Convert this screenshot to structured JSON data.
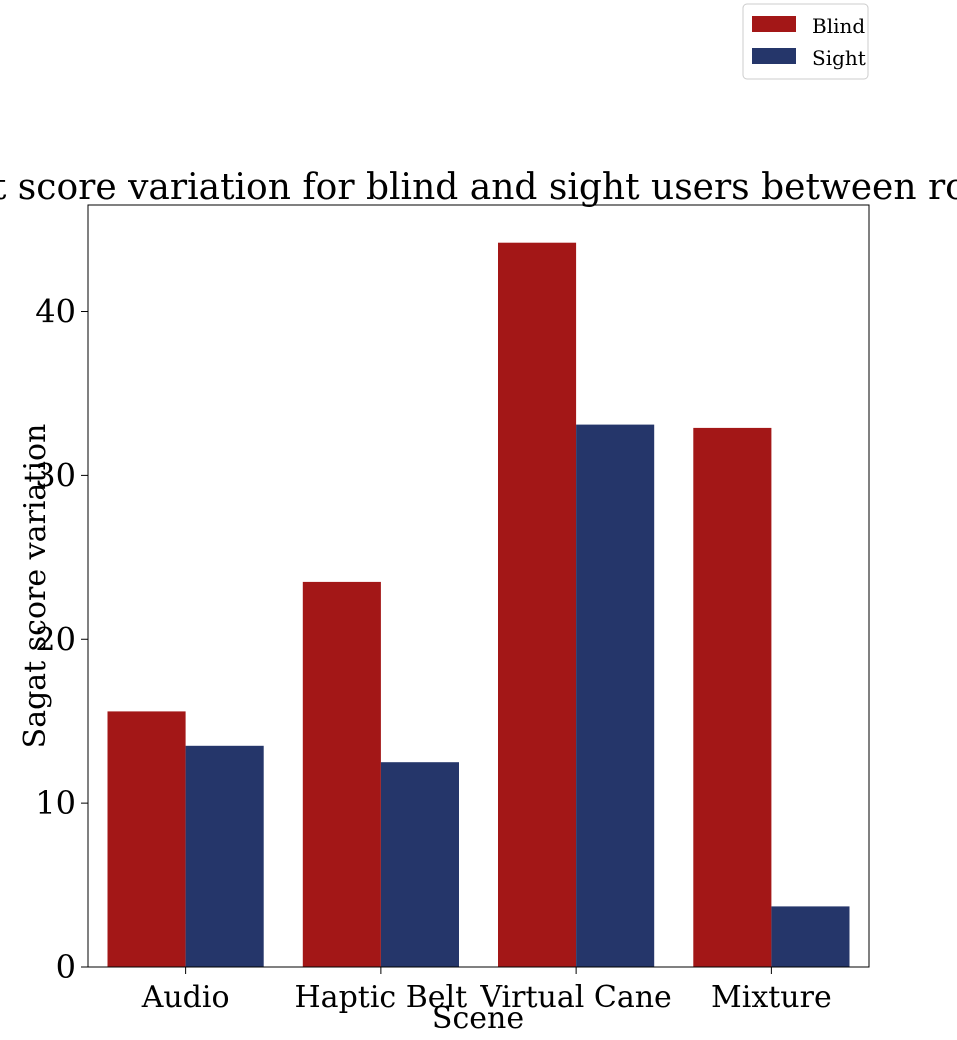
{
  "chart_data": {
    "type": "bar",
    "title": "Sagat score variation for blind and sight users between rounds",
    "xlabel": "Scene",
    "ylabel": "Sagat score variation",
    "categories": [
      "Audio",
      "Haptic Belt",
      "Virtual Cane",
      "Mixture"
    ],
    "series": [
      {
        "name": "Blind",
        "color": "#a31717",
        "values": [
          15.6,
          23.5,
          44.2,
          32.9
        ]
      },
      {
        "name": "Sight",
        "color": "#25366a",
        "values": [
          13.5,
          12.5,
          33.1,
          3.7
        ]
      }
    ],
    "ylim": [
      0,
      46.5
    ],
    "yticks": [
      0,
      10,
      20,
      30,
      40
    ],
    "grid": false,
    "legend": "top-right"
  }
}
